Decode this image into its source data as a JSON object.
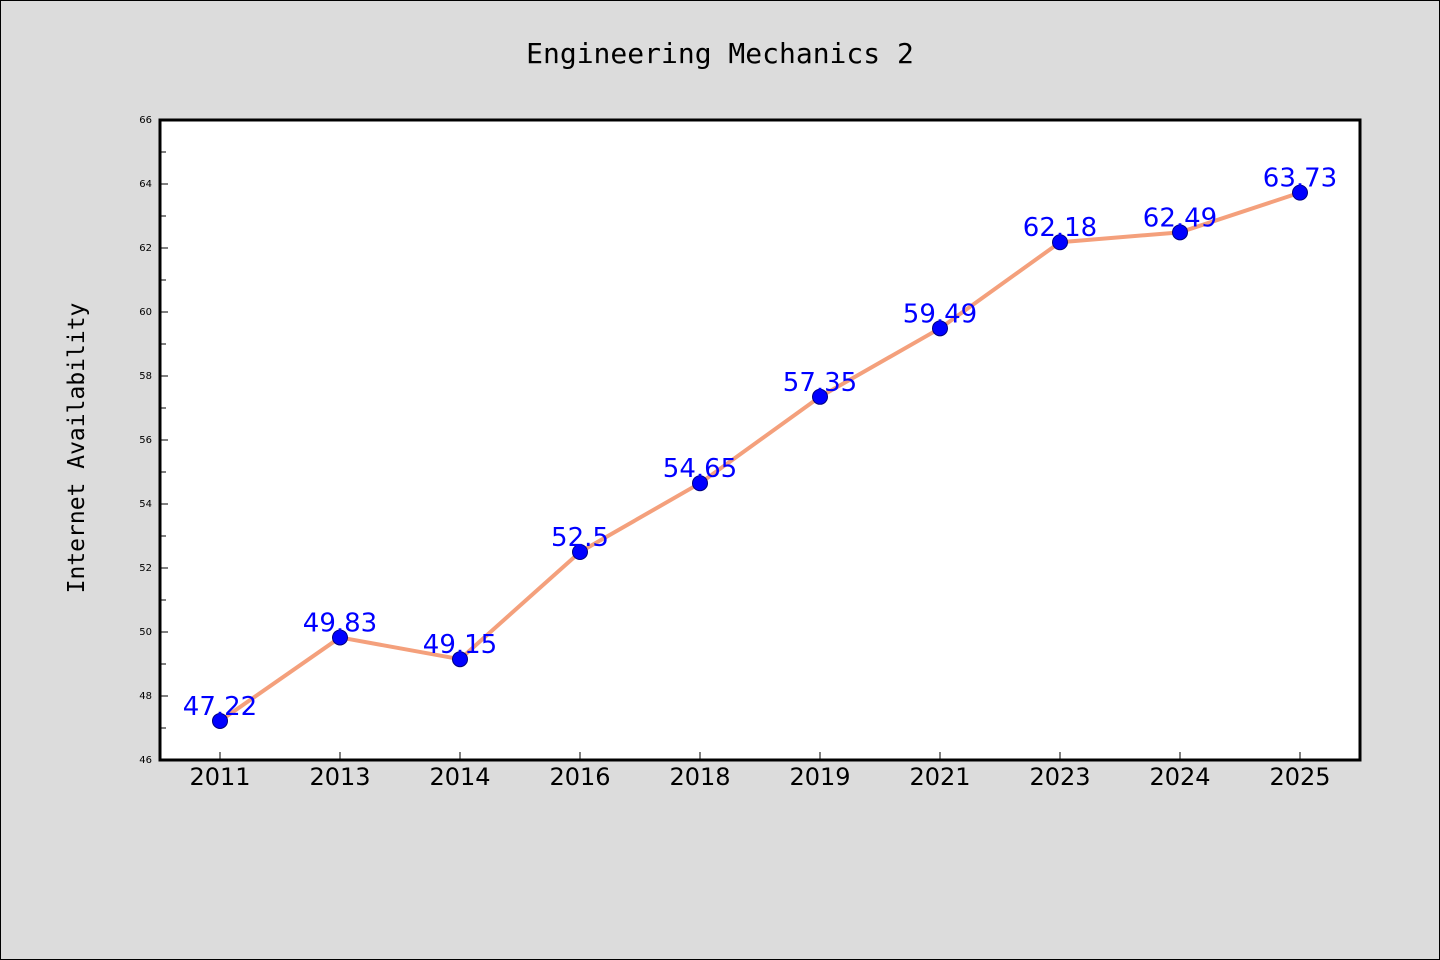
{
  "chart_data": {
    "type": "line",
    "title": "Engineering Mechanics 2",
    "xlabel": "",
    "ylabel": "Internet Availability",
    "categories": [
      "2011",
      "2013",
      "2014",
      "2016",
      "2018",
      "2019",
      "2021",
      "2023",
      "2024",
      "2025"
    ],
    "series": [
      {
        "values": [
          47.22,
          49.83,
          49.15,
          52.5,
          54.65,
          57.35,
          59.49,
          62.18,
          62.49,
          63.73
        ],
        "labels": [
          "47.22",
          "49.83",
          "49.15",
          "52.5",
          "54.65",
          "57.35",
          "59.49",
          "62.18",
          "62.49",
          "63.73"
        ]
      }
    ],
    "ylim": [
      46,
      66
    ],
    "yticks": [
      "46",
      "48",
      "50",
      "52",
      "54",
      "56",
      "58",
      "60",
      "62",
      "64",
      "66"
    ],
    "grid": false,
    "legend": "none",
    "colors": {
      "line": "#f4a07c",
      "marker": "#0000ff",
      "marker_edge": "#000080",
      "data_label": "#0000ff",
      "plot_background": "#ffffff",
      "figure_background": "#dcdcdc"
    }
  }
}
